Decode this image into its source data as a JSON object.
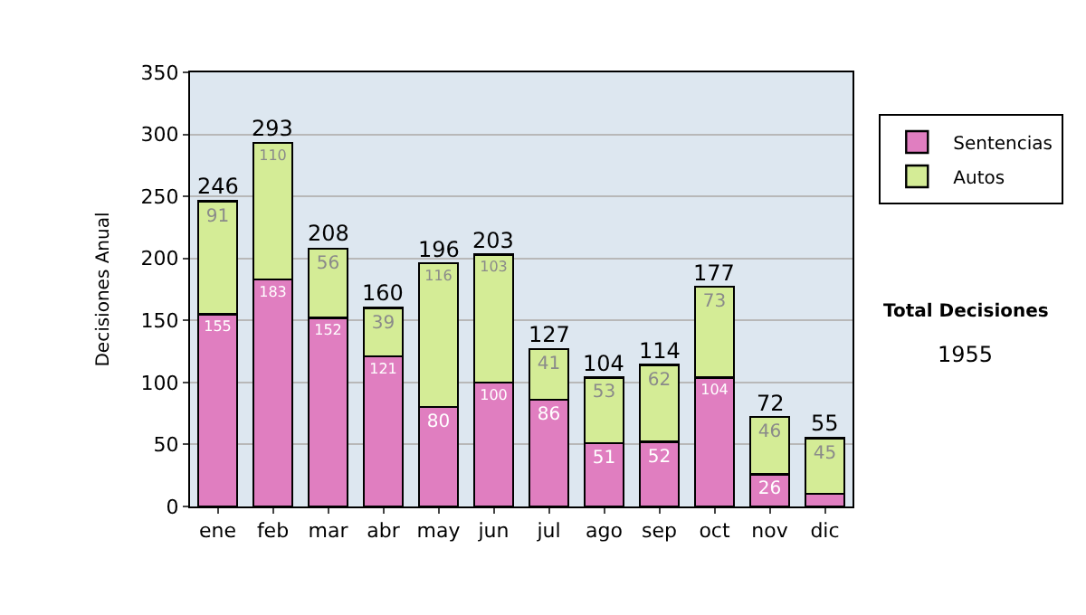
{
  "chart_data": {
    "type": "bar",
    "ylabel": "Decisiones Anual",
    "stacked": true,
    "categories": [
      "ene",
      "feb",
      "mar",
      "abr",
      "may",
      "jun",
      "jul",
      "ago",
      "sep",
      "oct",
      "nov",
      "dic"
    ],
    "series": [
      {
        "name": "Sentencias",
        "color": "#e07ec0",
        "values": [
          155,
          183,
          152,
          121,
          80,
          100,
          86,
          51,
          52,
          104,
          26,
          10
        ],
        "value_labels": [
          "155",
          "183",
          "152",
          "121",
          "80",
          "100",
          "86",
          "51",
          "52",
          "104",
          "26",
          null
        ]
      },
      {
        "name": "Autos",
        "color": "#d4ec96",
        "values": [
          91,
          110,
          56,
          39,
          116,
          103,
          41,
          53,
          62,
          73,
          46,
          45
        ],
        "value_labels": [
          "91",
          "110",
          "56",
          "39",
          "116",
          "103",
          "41",
          "53",
          "62",
          "73",
          "46",
          "45"
        ]
      }
    ],
    "totals": [
      "246",
      "293",
      "208",
      "160",
      "196",
      "203",
      "127",
      "104",
      "114",
      "177",
      "72",
      "55"
    ],
    "ylim": [
      0,
      350
    ],
    "yticks": [
      0,
      50,
      100,
      150,
      200,
      250,
      300,
      350
    ],
    "grid": "y",
    "legend": "right",
    "annotations": [
      "Total Decisiones",
      "1955"
    ]
  }
}
